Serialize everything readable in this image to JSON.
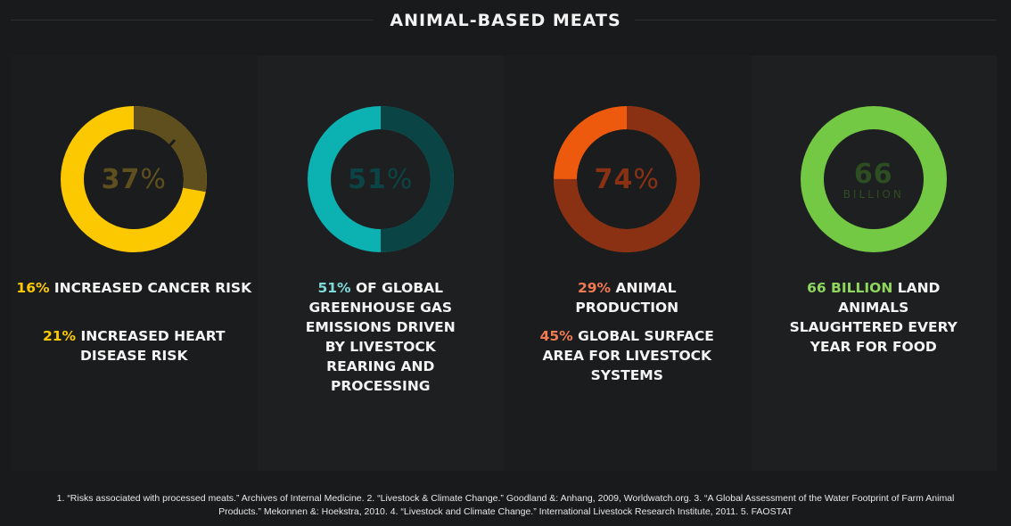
{
  "header": {
    "title": "ANIMAL-BASED MEATS"
  },
  "colors": {
    "bg": "#191a1b",
    "yellow": "#fcc900",
    "yellow_dark": "#5f4f1f",
    "teal": "#0cb1b2",
    "teal_dark": "#0b4445",
    "orange": "#ed5a0d",
    "brown": "#8a3114",
    "green": "#73c844",
    "green_dark": "#2d4d22"
  },
  "panels": [
    {
      "donut": {
        "value": "37",
        "unit": "%",
        "fraction": 0.63,
        "segments": [
          0.37,
          0.63
        ],
        "icon": "donut-cancer"
      },
      "stats": [
        {
          "highlight": "16%",
          "text": " INCREASED CANCER RISK"
        },
        {
          "highlight": "21%",
          "text": " INCREASED HEART DISEASE RISK"
        }
      ]
    },
    {
      "donut": {
        "value": "51",
        "unit": "%",
        "fraction": 0.49
      },
      "stats": [
        {
          "highlight": "51%",
          "text": " OF GLOBAL GREENHOUSE GAS EMISSIONS DRIVEN BY LIVESTOCK REARING AND PROCESSING"
        }
      ]
    },
    {
      "donut": {
        "value": "74",
        "unit": "%",
        "fraction": 0.26
      },
      "stats": [
        {
          "highlight": "29%",
          "text": " ANIMAL PRODUCTION"
        },
        {
          "highlight": "45%",
          "text": " GLOBAL SURFACE AREA FOR LIVESTOCK SYSTEMS"
        }
      ]
    },
    {
      "donut": {
        "value": "66",
        "unit": "BILLION",
        "fraction": 1.0
      },
      "stats": [
        {
          "highlight": "66 BILLION",
          "text": " LAND ANIMALS SLAUGHTERED EVERY YEAR FOR FOOD"
        }
      ]
    }
  ],
  "footer": {
    "line1": "1. “Risks associated with processed meats.” Archives of Internal Medicine. 2. “Livestock & Climate Change.” Goodland &: Anhang, 2009, Worldwatch.org. 3. “A Global Assessment of the Water Footprint of Farm Animal",
    "line2": "Products.” Mekonnen &: Hoekstra, 2010. 4. “Livestock and Climate Change.” International Livestock Research Institute, 2011. 5. FAOSTAT"
  }
}
